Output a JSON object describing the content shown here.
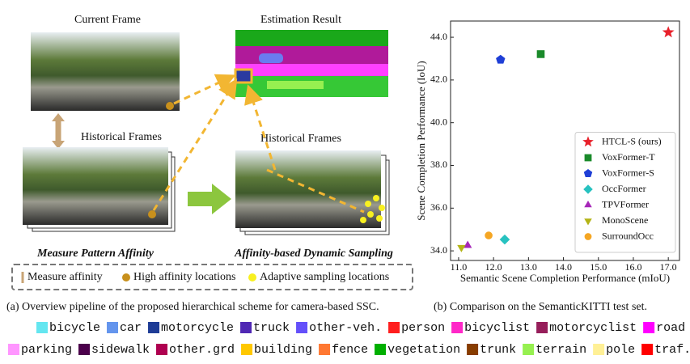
{
  "diagram": {
    "current_frame": "Current Frame",
    "estimation_result": "Estimation Result",
    "historical_frames_left": "Historical Frames",
    "historical_frames_right": "Historical Frames",
    "step_left": "Measure Pattern Affinity",
    "step_right": "Affinity-based Dynamic Sampling",
    "legend": [
      "Measure affinity",
      "High affinity locations",
      "Adaptive sampling locations"
    ]
  },
  "captions": {
    "a": "(a) Overview pipeline of the proposed hierarchical scheme for camera-based SSC.",
    "b": "(b) Comparison on the SemanticKITTI test set."
  },
  "classes": [
    [
      {
        "name": "bicycle",
        "color": "#64e6f0"
      },
      {
        "name": "car",
        "color": "#6495ed"
      },
      {
        "name": "motorcycle",
        "color": "#1e3c96"
      },
      {
        "name": "truck",
        "color": "#5028b4"
      },
      {
        "name": "other-veh.",
        "color": "#6450fa"
      },
      {
        "name": "person",
        "color": "#ff1e1e"
      },
      {
        "name": "bicyclist",
        "color": "#ff28c8"
      },
      {
        "name": "motorcyclist",
        "color": "#961e5a"
      },
      {
        "name": "road",
        "color": "#ff00ff"
      }
    ],
    [
      {
        "name": "parking",
        "color": "#ff96ff"
      },
      {
        "name": "sidewalk",
        "color": "#4b004b"
      },
      {
        "name": "other.grd",
        "color": "#af0050"
      },
      {
        "name": "building",
        "color": "#ffc800"
      },
      {
        "name": "fence",
        "color": "#ff7832"
      },
      {
        "name": "vegetation",
        "color": "#00af00"
      },
      {
        "name": "trunk",
        "color": "#873c00"
      },
      {
        "name": "terrain",
        "color": "#96f050"
      },
      {
        "name": "pole",
        "color": "#fff096"
      },
      {
        "name": "traf.sign",
        "color": "#ff0000"
      }
    ]
  ],
  "chart_data": {
    "type": "scatter",
    "x_label": "Semantic Scene Completion Performance (mIoU)",
    "y_label": "Scene Completion Performance (IoU)",
    "xlim": [
      10.77,
      17.32
    ],
    "ylim": [
      33.55,
      44.76
    ],
    "xticks": [
      {
        "value": 11,
        "label": "11.0"
      },
      {
        "value": 12,
        "label": "12.0"
      },
      {
        "value": 13,
        "label": "13.0"
      },
      {
        "value": 14,
        "label": "14.0"
      },
      {
        "value": 15,
        "label": "15.0"
      },
      {
        "value": 16,
        "label": "16.0"
      },
      {
        "value": 17,
        "label": "17.0"
      }
    ],
    "yticks": [
      {
        "value": 34,
        "label": "34.0"
      },
      {
        "value": 36,
        "label": "36.0"
      },
      {
        "value": 38,
        "label": "38.0"
      },
      {
        "value": 40,
        "label": "40.0"
      },
      {
        "value": 42,
        "label": "42.0"
      },
      {
        "value": 44,
        "label": "44.0"
      }
    ],
    "legend_position": "lower right",
    "series": [
      {
        "name": "HTCL-S (ours)",
        "color": "#e8202a",
        "marker": "star",
        "x": [
          17.0
        ],
        "values": [
          44.23
        ]
      },
      {
        "name": "VoxFormer-T",
        "color": "#1a8a2a",
        "marker": "square",
        "x": [
          13.35
        ],
        "values": [
          43.21
        ]
      },
      {
        "name": "VoxFormer-S",
        "color": "#1f3fd6",
        "marker": "pentagon",
        "x": [
          12.2
        ],
        "values": [
          42.95
        ]
      },
      {
        "name": "OccFormer",
        "color": "#27c2c0",
        "marker": "diamond",
        "x": [
          12.32
        ],
        "values": [
          34.53
        ]
      },
      {
        "name": "TPVFormer",
        "color": "#a626b8",
        "marker": "triangle-up",
        "x": [
          11.26
        ],
        "values": [
          34.25
        ]
      },
      {
        "name": "MonoScene",
        "color": "#b4b416",
        "marker": "triangle-down",
        "x": [
          11.08
        ],
        "values": [
          34.16
        ]
      },
      {
        "name": "SurroundOcc",
        "color": "#f5a623",
        "marker": "circle",
        "x": [
          11.86
        ],
        "values": [
          34.72
        ]
      }
    ]
  }
}
